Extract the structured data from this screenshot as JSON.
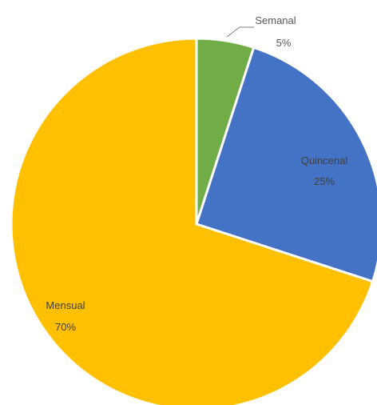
{
  "chart_data": {
    "type": "pie",
    "title": "",
    "slices": [
      {
        "label": "Semanal",
        "value": 5,
        "display": "5%",
        "color": "#70AD47",
        "label_color": "#595959"
      },
      {
        "label": "Quincenal",
        "value": 25,
        "display": "25%",
        "color": "#4472C4",
        "label_color": "#404040"
      },
      {
        "label": "Mensual",
        "value": 70,
        "display": "70%",
        "color": "#FFC000",
        "label_color": "#404040"
      }
    ],
    "start_angle_deg": 0,
    "direction": "clockwise",
    "data_labels": true,
    "legend": "none"
  }
}
